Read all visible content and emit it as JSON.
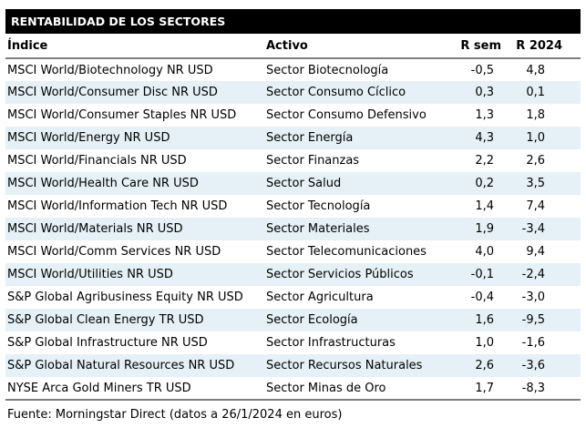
{
  "header": {
    "title": "RENTABILIDAD DE LOS SECTORES"
  },
  "footer": {
    "source": "Fuente: Morningstar Direct (datos a 26/1/2024 en euros)"
  },
  "colors": {
    "title_bar_bg": "#000000",
    "title_bar_text": "#ffffff",
    "row_alt_bg": "#e5f1f6",
    "border": "#7f7f7f",
    "text": "#000000"
  },
  "chart_data": {
    "type": "table",
    "title": "RENTABILIDAD DE LOS SECTORES",
    "columns": [
      "Índice",
      "Activo",
      "R sem",
      "R 2024"
    ],
    "rows": [
      [
        "MSCI World/Biotechnology NR USD",
        "Sector Biotecnología",
        "-0,5",
        "4,8"
      ],
      [
        "MSCI World/Consumer Disc NR USD",
        "Sector Consumo Cíclico",
        "0,3",
        "0,1"
      ],
      [
        "MSCI World/Consumer Staples NR USD",
        "Sector Consumo Defensivo",
        "1,3",
        "1,8"
      ],
      [
        "MSCI World/Energy NR USD",
        "Sector Energía",
        "4,3",
        "1,0"
      ],
      [
        "MSCI World/Financials NR USD",
        "Sector Finanzas",
        "2,2",
        "2,6"
      ],
      [
        "MSCI World/Health Care NR USD",
        "Sector Salud",
        "0,2",
        "3,5"
      ],
      [
        "MSCI World/Information Tech NR USD",
        "Sector Tecnología",
        "1,4",
        "7,4"
      ],
      [
        "MSCI World/Materials NR USD",
        "Sector Materiales",
        "1,9",
        "-3,4"
      ],
      [
        "MSCI World/Comm Services NR USD",
        "Sector Telecomunicaciones",
        "4,0",
        "9,4"
      ],
      [
        "MSCI World/Utilities NR USD",
        "Sector Servicios Públicos",
        "-0,1",
        "-2,4"
      ],
      [
        "S&P Global Agribusiness Equity NR USD",
        "Sector Agricultura",
        "-0,4",
        "-3,0"
      ],
      [
        "S&P Global Clean Energy TR USD",
        "Sector Ecología",
        "1,6",
        "-9,5"
      ],
      [
        "S&P Global Infrastructure NR USD",
        "Sector Infrastructuras",
        "1,0",
        "-1,6"
      ],
      [
        "S&P Global Natural Resources NR USD",
        "Sector Recursos Naturales",
        "2,6",
        "-3,6"
      ],
      [
        "NYSE Arca Gold Miners TR USD",
        "Sector Minas de Oro",
        "1,7",
        "-8,3"
      ]
    ],
    "source": "Fuente: Morningstar Direct (datos a 26/1/2024 en euros)",
    "layout": {
      "alternating_rows": true,
      "numeric_columns_right_aligned": true
    }
  }
}
